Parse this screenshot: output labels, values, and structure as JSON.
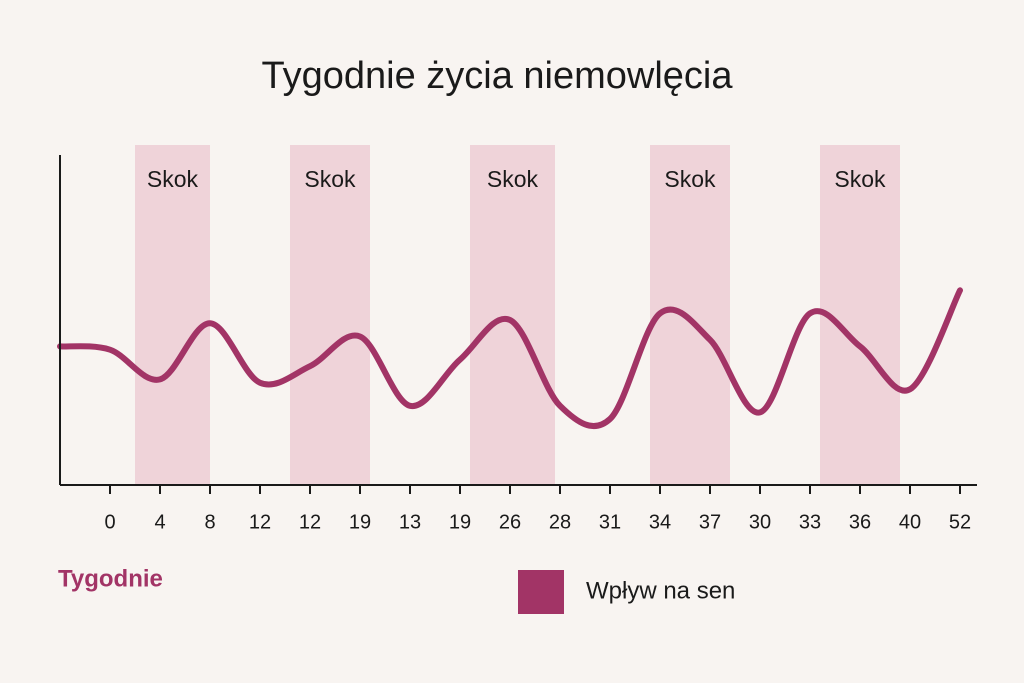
{
  "chart_data": {
    "type": "line",
    "title": "Tygodnie życia niemowlęcia",
    "x_label": "Tygodnie",
    "categories": [
      null,
      "0",
      "4",
      "8",
      "12",
      "12",
      "19",
      "13",
      "19",
      "26",
      "28",
      "31",
      "34",
      "37",
      "30",
      "33",
      "36",
      "40",
      "52"
    ],
    "series": [
      {
        "name": "Wpływ na sen",
        "color": "#a23466",
        "values": [
          42,
          41,
          32,
          49,
          31,
          36,
          45,
          24,
          38,
          50,
          24,
          20,
          52,
          44,
          22,
          52,
          42,
          29,
          59
        ]
      }
    ],
    "ylim": [
      0,
      100
    ],
    "bands": [
      {
        "label": "Skok",
        "from": 1.5,
        "to": 3,
        "color": "#efd3d9"
      },
      {
        "label": "Skok",
        "from": 4.6,
        "to": 6.2,
        "color": "#efd3d9"
      },
      {
        "label": "Skok",
        "from": 8.2,
        "to": 9.9,
        "color": "#efd3d9"
      },
      {
        "label": "Skok",
        "from": 11.8,
        "to": 13.4,
        "color": "#efd3d9"
      },
      {
        "label": "Skok",
        "from": 15.2,
        "to": 16.8,
        "color": "#efd3d9"
      }
    ]
  }
}
